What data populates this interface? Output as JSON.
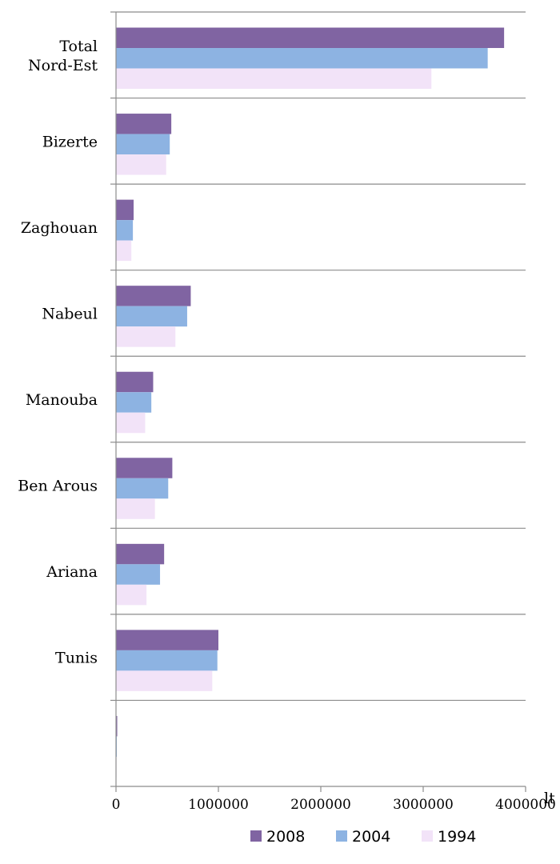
{
  "chart_data": {
    "type": "bar",
    "orientation": "horizontal",
    "categories": [
      "Total\nNord-Est",
      "Bizerte",
      "Zaghouan",
      "Nabeul",
      "Manouba",
      "Ben Arous",
      "Ariana",
      "Tunis",
      ""
    ],
    "series": [
      {
        "name": "2008",
        "color": "#8064a2",
        "values": [
          3790000,
          540000,
          172000,
          730000,
          363000,
          550000,
          470000,
          1000000,
          12000
        ]
      },
      {
        "name": "2004",
        "color": "#8db3e2",
        "values": [
          3630000,
          525000,
          165000,
          695000,
          345000,
          510000,
          430000,
          990000,
          8000
        ]
      },
      {
        "name": "1994",
        "color": "#f2e3f8",
        "values": [
          3080000,
          490000,
          150000,
          580000,
          285000,
          380000,
          298000,
          940000,
          5000
        ]
      }
    ],
    "xlim": [
      0,
      4000000
    ],
    "xticks": [
      "0",
      "1000000",
      "2000000",
      "3000000",
      "4000000"
    ],
    "grid": true,
    "legend_position": "bottom-right",
    "stray_text": "lt"
  }
}
